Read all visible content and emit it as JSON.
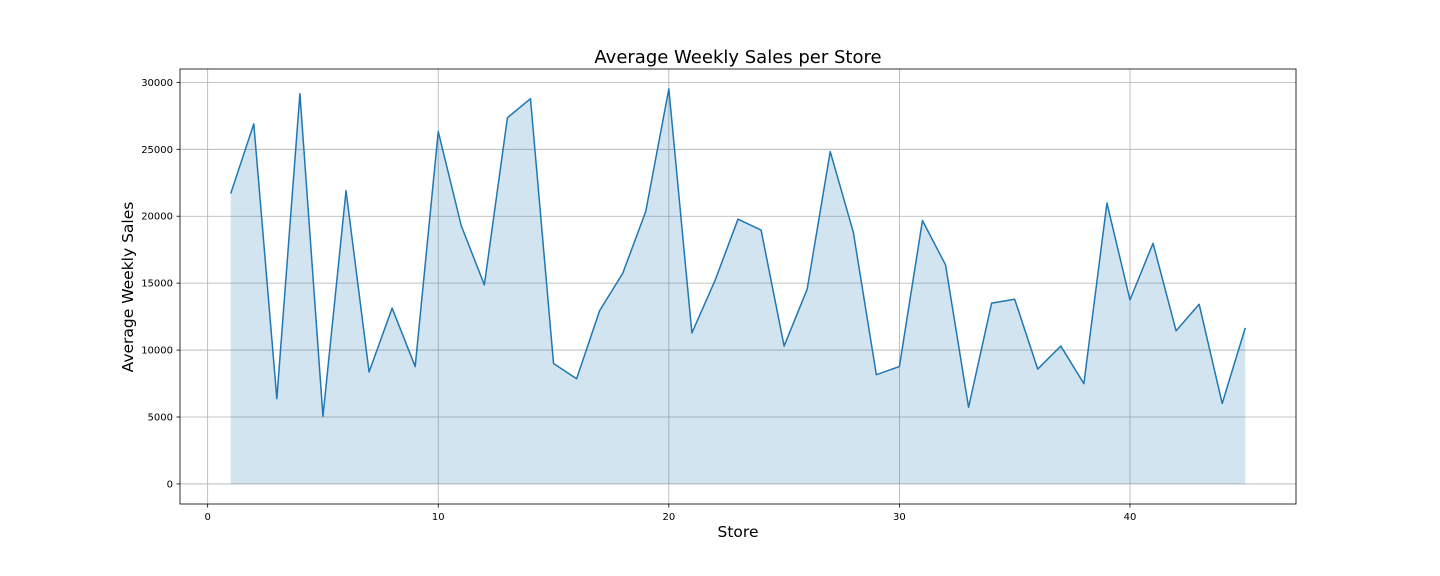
{
  "chart_data": {
    "type": "area",
    "title": "Average Weekly Sales per Store",
    "xlabel": "Store",
    "ylabel": "Average Weekly Sales",
    "xlim": [
      -1.2,
      47.2
    ],
    "ylim": [
      -1500,
      31000
    ],
    "xticks": [
      0,
      10,
      20,
      30,
      40
    ],
    "xtick_labels": [
      "0",
      "10",
      "20",
      "30",
      "40"
    ],
    "yticks": [
      0,
      5000,
      10000,
      15000,
      20000,
      25000,
      30000
    ],
    "ytick_labels": [
      "0",
      "5000",
      "10000",
      "15000",
      "20000",
      "25000",
      "30000"
    ],
    "grid": true,
    "colors": {
      "line": "#1f77b4",
      "fill": "#1f77b4",
      "fill_opacity": 0.2
    },
    "series": [
      {
        "x": [
          1,
          2,
          3,
          4,
          5,
          6,
          7,
          8,
          9,
          10,
          11,
          12,
          13,
          14,
          15,
          16,
          17,
          18,
          19,
          20,
          21,
          22,
          23,
          24,
          25,
          26,
          27,
          28,
          29,
          30,
          31,
          32,
          33,
          34,
          35,
          36,
          37,
          38,
          39,
          40,
          41,
          42,
          43,
          44,
          45
        ],
        "values": [
          21700,
          26900,
          6370,
          29160,
          5050,
          21910,
          8360,
          13130,
          8770,
          26330,
          19280,
          14870,
          27360,
          28780,
          9000,
          7860,
          12950,
          15730,
          20360,
          29510,
          11280,
          15180,
          19780,
          18970,
          10300,
          14550,
          24830,
          18820,
          8160,
          8770,
          19680,
          16370,
          5730,
          13510,
          13800,
          8580,
          10300,
          7490,
          20980,
          13750,
          17980,
          11440,
          13420,
          6010,
          11660
        ]
      }
    ]
  }
}
